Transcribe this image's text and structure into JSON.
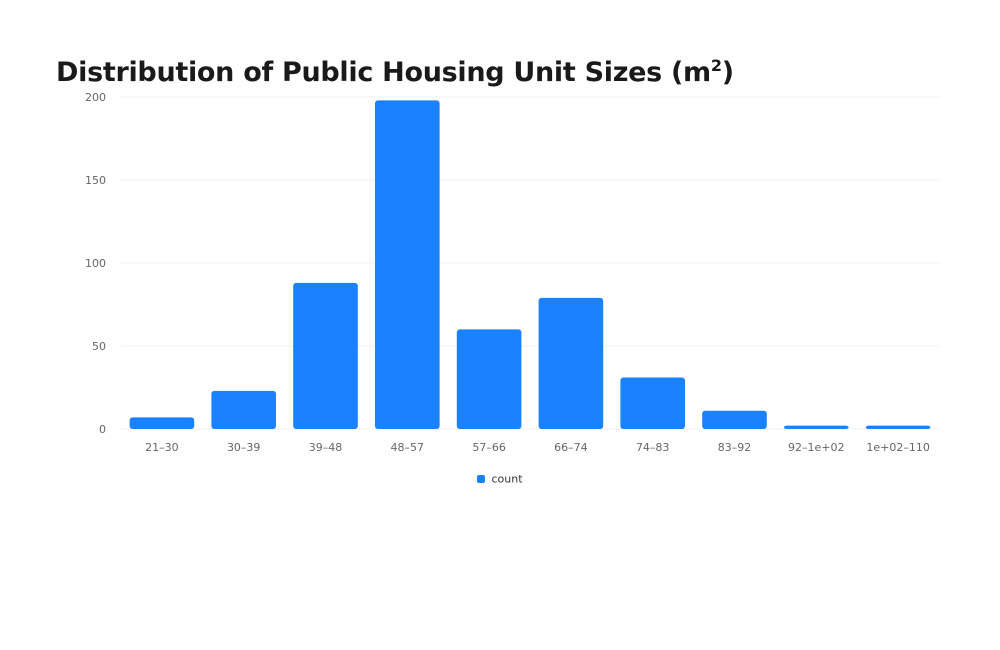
{
  "chart_data": {
    "type": "bar",
    "title": "Distribution of Public Housing Unit Sizes (m",
    "title_superscript": "2",
    "title_suffix": ")",
    "categories": [
      "21–30",
      "30–39",
      "39–48",
      "48–57",
      "57–66",
      "66–74",
      "74–83",
      "83–92",
      "92–1e+02",
      "1e+02–110"
    ],
    "series": [
      {
        "name": "count",
        "color": "#1a82ff",
        "values": [
          7,
          23,
          88,
          198,
          60,
          79,
          31,
          11,
          2,
          2
        ]
      }
    ],
    "ylim": [
      0,
      200
    ],
    "yticks": [
      "0",
      "50",
      "100",
      "150",
      "200"
    ],
    "grid": true,
    "legend_position": "bottom-center",
    "xlabel": "",
    "ylabel": ""
  }
}
